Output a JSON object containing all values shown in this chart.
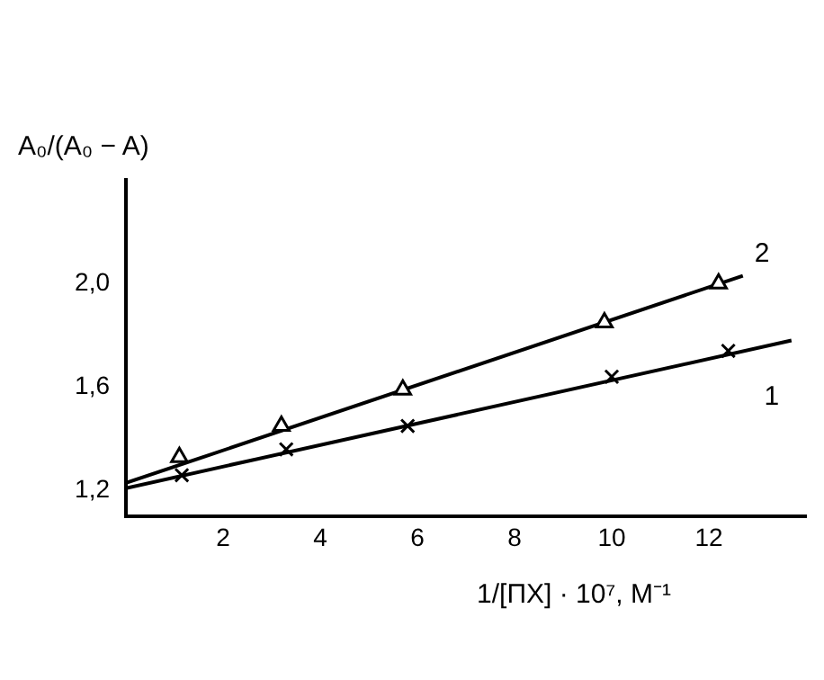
{
  "chart_data": {
    "type": "scatter",
    "xlabel": "1/[ПХ] · 10⁷, М⁻¹",
    "ylabel": "A₀/(A₀ − A)",
    "xlim": [
      0,
      14
    ],
    "xticks": [
      2,
      4,
      6,
      8,
      10,
      12
    ],
    "ylim": [
      1.1,
      2.4
    ],
    "yticks": [
      {
        "value": 1.2,
        "label": "1,2"
      },
      {
        "value": 1.6,
        "label": "1,6"
      },
      {
        "value": 2.0,
        "label": "2,0"
      }
    ],
    "grid": false,
    "legend": false,
    "series": [
      {
        "name": "1",
        "color": "#000000",
        "marker": "cross",
        "x": [
          1.15,
          3.3,
          5.8,
          10,
          12.4
        ],
        "values": [
          1.26,
          1.36,
          1.45,
          1.64,
          1.74
        ]
      },
      {
        "name": "2",
        "color": "#000000",
        "marker": "triangle",
        "x": [
          1.1,
          3.2,
          5.7,
          9.85,
          12.2
        ],
        "values": [
          1.33,
          1.45,
          1.59,
          1.85,
          2.0
        ]
      },
      {
        "type": "line",
        "color": "#000000",
        "marker": "none",
        "x": [
          0,
          13.7
        ],
        "values": [
          1.21,
          1.78
        ]
      },
      {
        "type": "line",
        "color": "#000000",
        "marker": "none",
        "x": [
          0,
          12.7
        ],
        "values": [
          1.23,
          2.03
        ]
      }
    ]
  }
}
